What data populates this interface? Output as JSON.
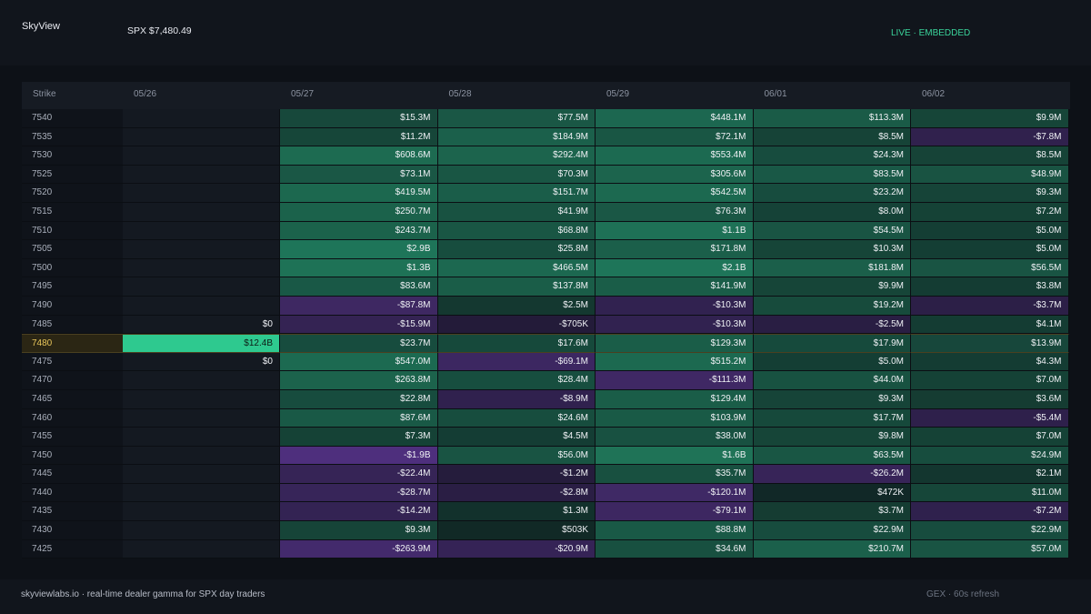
{
  "header": {
    "brand": "SkyView",
    "spx": "SPX $7,480.49",
    "status": "LIVE · EMBEDDED"
  },
  "table": {
    "strike_header": "Strike",
    "columns": [
      "05/26",
      "05/27",
      "05/28",
      "05/29",
      "06/01",
      "06/02"
    ],
    "highlight_strike": "7480",
    "rows": [
      {
        "strike": "7540",
        "cells": [
          "",
          "$15.3M",
          "$77.5M",
          "$448.1M",
          "$113.3M",
          "$9.9M"
        ]
      },
      {
        "strike": "7535",
        "cells": [
          "",
          "$11.2M",
          "$184.9M",
          "$72.1M",
          "$8.5M",
          "-$7.8M"
        ]
      },
      {
        "strike": "7530",
        "cells": [
          "",
          "$608.6M",
          "$292.4M",
          "$553.4M",
          "$24.3M",
          "$8.5M"
        ]
      },
      {
        "strike": "7525",
        "cells": [
          "",
          "$73.1M",
          "$70.3M",
          "$305.6M",
          "$83.5M",
          "$48.9M"
        ]
      },
      {
        "strike": "7520",
        "cells": [
          "",
          "$419.5M",
          "$151.7M",
          "$542.5M",
          "$23.2M",
          "$9.3M"
        ]
      },
      {
        "strike": "7515",
        "cells": [
          "",
          "$250.7M",
          "$41.9M",
          "$76.3M",
          "$8.0M",
          "$7.2M"
        ]
      },
      {
        "strike": "7510",
        "cells": [
          "",
          "$243.7M",
          "$68.8M",
          "$1.1B",
          "$54.5M",
          "$5.0M"
        ]
      },
      {
        "strike": "7505",
        "cells": [
          "",
          "$2.9B",
          "$25.8M",
          "$171.8M",
          "$10.3M",
          "$5.0M"
        ]
      },
      {
        "strike": "7500",
        "cells": [
          "",
          "$1.3B",
          "$466.5M",
          "$2.1B",
          "$181.8M",
          "$56.5M"
        ]
      },
      {
        "strike": "7495",
        "cells": [
          "",
          "$83.6M",
          "$137.8M",
          "$141.9M",
          "$9.9M",
          "$3.8M"
        ]
      },
      {
        "strike": "7490",
        "cells": [
          "",
          "-$87.8M",
          "$2.5M",
          "-$10.3M",
          "$19.2M",
          "-$3.7M"
        ]
      },
      {
        "strike": "7485",
        "cells": [
          "$0",
          "-$15.9M",
          "-$705K",
          "-$10.3M",
          "-$2.5M",
          "$4.1M"
        ]
      },
      {
        "strike": "7480",
        "cells": [
          "$12.4B",
          "$23.7M",
          "$17.6M",
          "$129.3M",
          "$17.9M",
          "$13.9M"
        ]
      },
      {
        "strike": "7475",
        "cells": [
          "$0",
          "$547.0M",
          "-$69.1M",
          "$515.2M",
          "$5.0M",
          "$4.3M"
        ]
      },
      {
        "strike": "7470",
        "cells": [
          "",
          "$263.8M",
          "$28.4M",
          "-$111.3M",
          "$44.0M",
          "$7.0M"
        ]
      },
      {
        "strike": "7465",
        "cells": [
          "",
          "$22.8M",
          "-$8.9M",
          "$129.4M",
          "$9.3M",
          "$3.6M"
        ]
      },
      {
        "strike": "7460",
        "cells": [
          "",
          "$87.6M",
          "$24.6M",
          "$103.9M",
          "$17.7M",
          "-$5.4M"
        ]
      },
      {
        "strike": "7455",
        "cells": [
          "",
          "$7.3M",
          "$4.5M",
          "$38.0M",
          "$9.8M",
          "$7.0M"
        ]
      },
      {
        "strike": "7450",
        "cells": [
          "",
          "-$1.9B",
          "$56.0M",
          "$1.6B",
          "$63.5M",
          "$24.9M"
        ]
      },
      {
        "strike": "7445",
        "cells": [
          "",
          "-$22.4M",
          "-$1.2M",
          "$35.7M",
          "-$26.2M",
          "$2.1M"
        ]
      },
      {
        "strike": "7440",
        "cells": [
          "",
          "-$28.7M",
          "-$2.8M",
          "-$120.1M",
          "$472K",
          "$11.0M"
        ]
      },
      {
        "strike": "7435",
        "cells": [
          "",
          "-$14.2M",
          "$1.3M",
          "-$79.1M",
          "$3.7M",
          "-$7.2M"
        ]
      },
      {
        "strike": "7430",
        "cells": [
          "",
          "$9.3M",
          "$503K",
          "$88.8M",
          "$22.9M",
          "$22.9M"
        ]
      },
      {
        "strike": "7425",
        "cells": [
          "",
          "-$263.9M",
          "-$20.9M",
          "$34.6M",
          "$210.7M",
          "$57.0M"
        ]
      }
    ]
  },
  "colors": {
    "positive": "#2ec98f",
    "negative": "#7b45c2",
    "highlight_strike": "#e8c65a"
  },
  "footer": {
    "left": "skyviewlabs.io · real-time dealer gamma for SPX day traders",
    "right": "GEX · 60s refresh"
  }
}
